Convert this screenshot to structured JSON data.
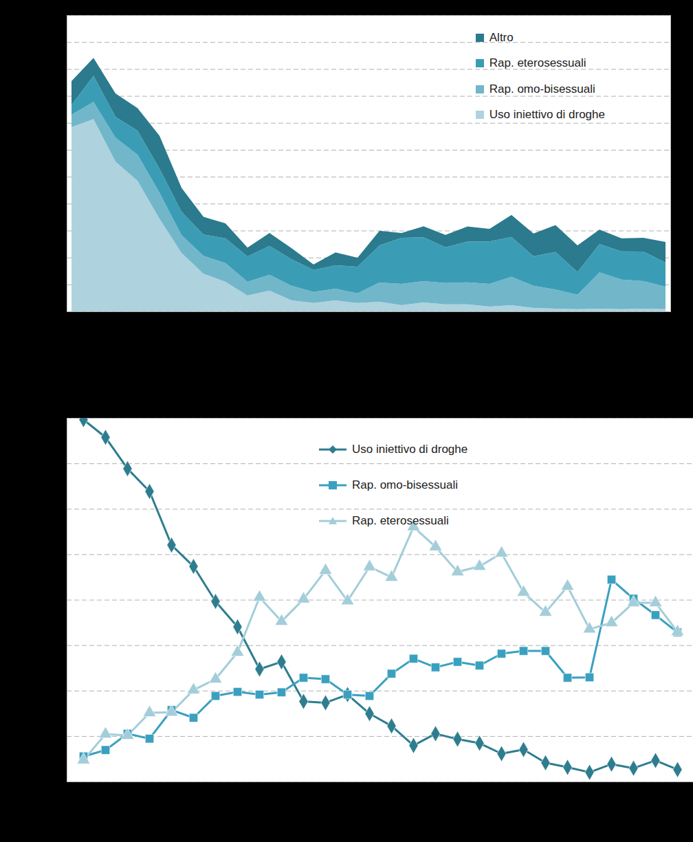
{
  "chart_data": [
    {
      "type": "area",
      "stacked": true,
      "grid": true,
      "legend": "top-right",
      "tick_labels": false,
      "categories": [
        null,
        null,
        null,
        null,
        null,
        null,
        null,
        null,
        null,
        null,
        null,
        null,
        null,
        null,
        null,
        null,
        null,
        null,
        null,
        null,
        null,
        null,
        null,
        null,
        null,
        null,
        null,
        null
      ],
      "ylim": [
        0,
        11
      ],
      "yticks": [
        0,
        1,
        2,
        3,
        4,
        5,
        6,
        7,
        8,
        9,
        10,
        11
      ],
      "series": [
        {
          "name": "Uso iniettivo di droghe",
          "color": "#aed3de",
          "values": [
            6.84,
            7.14,
            5.56,
            4.85,
            3.44,
            2.17,
            1.4,
            1.1,
            0.59,
            0.77,
            0.41,
            0.31,
            0.41,
            0.31,
            0.36,
            0.23,
            0.33,
            0.26,
            0.26,
            0.18,
            0.23,
            0.13,
            0.1,
            0.08,
            0.1,
            0.08,
            0.1,
            0.08
          ]
        },
        {
          "name": "Rap. omo-bisessuali",
          "color": "#72b6ca",
          "values": [
            0.46,
            0.64,
            0.89,
            0.97,
            0.97,
            0.66,
            0.66,
            0.69,
            0.51,
            0.59,
            0.54,
            0.41,
            0.43,
            0.36,
            0.71,
            0.79,
            0.79,
            0.79,
            0.82,
            0.84,
            1.05,
            0.82,
            0.71,
            0.54,
            1.35,
            1.1,
            1.02,
            0.84
          ]
        },
        {
          "name": "Rap. eterosessuali",
          "color": "#3b9db5",
          "values": [
            0.36,
            0.97,
            0.77,
            0.89,
            0.89,
            0.87,
            0.79,
            0.92,
            0.94,
            1.07,
            0.99,
            0.82,
            0.87,
            0.99,
            1.38,
            1.71,
            1.63,
            1.33,
            1.51,
            1.58,
            1.48,
            1.1,
            1.4,
            0.84,
            1.05,
            1.05,
            1.1,
            0.89
          ]
        },
        {
          "name": "Altro",
          "color": "#2b7a8d",
          "values": [
            0.89,
            0.66,
            0.87,
            0.84,
            1.22,
            0.89,
            0.66,
            0.56,
            0.33,
            0.48,
            0.41,
            0.2,
            0.48,
            0.33,
            0.54,
            0.18,
            0.41,
            0.46,
            0.56,
            0.46,
            0.82,
            0.84,
            0.99,
            0.99,
            0.54,
            0.48,
            0.51,
            0.77
          ]
        }
      ]
    },
    {
      "type": "line",
      "grid": true,
      "legend": "top",
      "tick_labels": false,
      "categories": [
        null,
        null,
        null,
        null,
        null,
        null,
        null,
        null,
        null,
        null,
        null,
        null,
        null,
        null,
        null,
        null,
        null,
        null,
        null,
        null,
        null,
        null,
        null,
        null,
        null,
        null,
        null,
        null
      ],
      "ylim": [
        0,
        80
      ],
      "yticks": [
        0,
        10,
        20,
        30,
        40,
        50,
        60,
        70,
        80
      ],
      "series": [
        {
          "name": "Uso iniettivo di droghe",
          "color": "#2e7d8f",
          "marker": "diamond",
          "values": [
            79.7,
            75.8,
            68.9,
            63.9,
            52.1,
            47.4,
            39.7,
            34.1,
            24.8,
            26.4,
            17.7,
            17.4,
            19.2,
            15.0,
            12.3,
            8.0,
            10.6,
            9.4,
            8.5,
            6.2,
            7.1,
            4.2,
            3.2,
            2.1,
            3.9,
            3.0,
            4.7,
            2.7
          ]
        },
        {
          "name": "Rap. omo-bisessuali",
          "color": "#3aa0c0",
          "marker": "square",
          "values": [
            5.6,
            7.0,
            10.6,
            9.5,
            15.8,
            14.1,
            18.9,
            19.8,
            19.2,
            19.7,
            22.9,
            22.6,
            19.2,
            18.9,
            23.8,
            27.1,
            25.2,
            26.4,
            25.6,
            28.2,
            28.8,
            28.8,
            22.9,
            23.0,
            44.5,
            40.3,
            36.7,
            32.9
          ]
        },
        {
          "name": "Rap. eterosessuali",
          "color": "#a3cdd9",
          "marker": "triangle",
          "values": [
            4.8,
            10.5,
            10.2,
            15.2,
            15.3,
            20.2,
            22.6,
            28.5,
            40.6,
            35.3,
            40.2,
            46.5,
            39.8,
            47.3,
            45.0,
            56.1,
            51.7,
            46.2,
            47.4,
            50.3,
            41.7,
            37.3,
            43.0,
            33.6,
            35.0,
            39.4,
            39.4,
            33.0
          ]
        }
      ]
    }
  ]
}
